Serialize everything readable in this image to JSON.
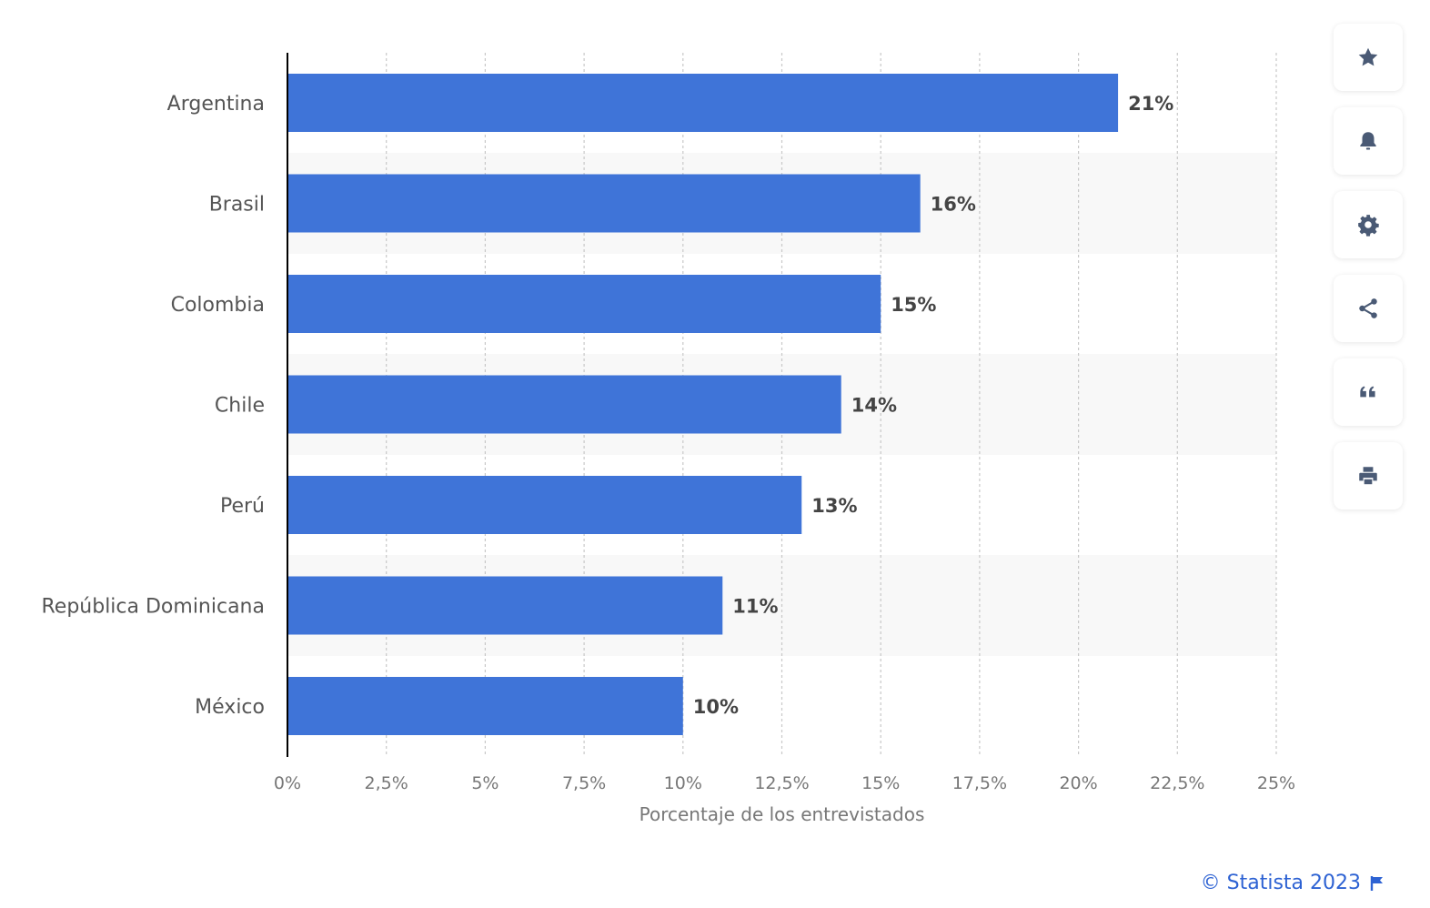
{
  "chart_data": {
    "type": "bar",
    "orientation": "horizontal",
    "categories": [
      "Argentina",
      "Brasil",
      "Colombia",
      "Chile",
      "Perú",
      "República Dominicana",
      "México"
    ],
    "values": [
      21,
      16,
      15,
      14,
      13,
      11,
      10
    ],
    "value_labels": [
      "21%",
      "16%",
      "15%",
      "14%",
      "13%",
      "11%",
      "10%"
    ],
    "xlabel": "Porcentaje de los entrevistados",
    "xlim": [
      0,
      25
    ],
    "xticks": [
      0,
      2.5,
      5,
      7.5,
      10,
      12.5,
      15,
      17.5,
      20,
      22.5,
      25
    ],
    "xtick_labels": [
      "0%",
      "2,5%",
      "5%",
      "7,5%",
      "10%",
      "12,5%",
      "15%",
      "17,5%",
      "20%",
      "22,5%",
      "25%"
    ],
    "grid": "vertical-dashed",
    "bar_color": "#3f74d8"
  },
  "sidebar": {
    "icons": [
      "star-icon",
      "bell-icon",
      "gear-icon",
      "share-icon",
      "quote-icon",
      "print-icon"
    ]
  },
  "footer": {
    "copyright": "© Statista 2023",
    "link_color": "#2d62d3"
  },
  "colors": {
    "axis_text": "#555555",
    "tick_text": "#777777",
    "value_text": "#444444",
    "icon": "#4a5a75",
    "band": "#f8f8f8"
  }
}
